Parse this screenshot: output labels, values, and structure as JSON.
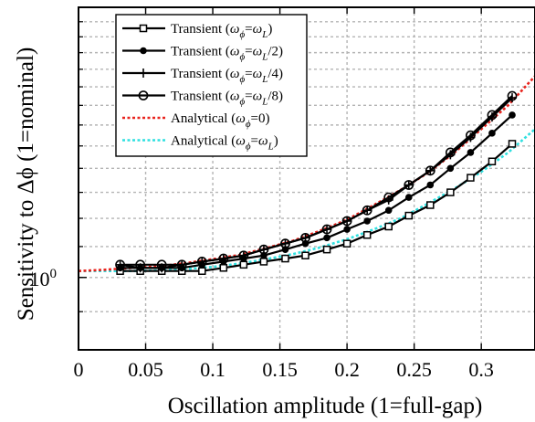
{
  "chart_data": {
    "type": "line",
    "xlabel": "Oscillation amplitude (1=full-gap)",
    "ylabel": "Sensitivity to Δϕ (1=nominal)",
    "xlim": [
      0,
      0.34
    ],
    "ylim": [
      0.8,
      2.3
    ],
    "yscale": "log",
    "grid": true,
    "legend_position": "top-left",
    "x_ticks": [
      {
        "value": 0,
        "label": "0"
      },
      {
        "value": 0.05,
        "label": "0.05"
      },
      {
        "value": 0.1,
        "label": "0.1"
      },
      {
        "value": 0.15,
        "label": "0.15"
      },
      {
        "value": 0.2,
        "label": "0.2"
      },
      {
        "value": 0.25,
        "label": "0.25"
      },
      {
        "value": 0.3,
        "label": "0.3"
      }
    ],
    "y_ticks": [
      {
        "value": 1,
        "base": "10",
        "exp": "0"
      }
    ],
    "x": [
      0.031,
      0.046,
      0.062,
      0.077,
      0.092,
      0.108,
      0.123,
      0.138,
      0.154,
      0.169,
      0.185,
      0.2,
      0.215,
      0.231,
      0.246,
      0.262,
      0.277,
      0.292,
      0.308,
      0.323
    ],
    "series": [
      {
        "name": "Transient (ωϕ=ωL)",
        "legend": {
          "pre": "Transient (",
          "w1": "ω",
          "s1": "ϕ",
          "mid": "=",
          "w2": "ω",
          "s2": "L",
          "post": ")"
        },
        "color": "#000000",
        "line": "solid",
        "marker": "square",
        "values": [
          1.02,
          1.02,
          1.02,
          1.02,
          1.02,
          1.03,
          1.04,
          1.05,
          1.06,
          1.07,
          1.09,
          1.11,
          1.14,
          1.17,
          1.21,
          1.25,
          1.3,
          1.36,
          1.43,
          1.51
        ]
      },
      {
        "name": "Transient (ωϕ=ωL/2)",
        "legend": {
          "pre": "Transient (",
          "w1": "ω",
          "s1": "ϕ",
          "mid": "=",
          "w2": "ω",
          "s2": "L",
          "post": "/2)"
        },
        "color": "#000000",
        "line": "solid",
        "marker": "dot",
        "values": [
          1.03,
          1.03,
          1.03,
          1.03,
          1.04,
          1.05,
          1.06,
          1.07,
          1.09,
          1.11,
          1.13,
          1.16,
          1.19,
          1.23,
          1.28,
          1.33,
          1.4,
          1.47,
          1.56,
          1.65
        ]
      },
      {
        "name": "Transient (ωϕ=ωL/4)",
        "legend": {
          "pre": "Transient (",
          "w1": "ω",
          "s1": "ϕ",
          "mid": "=",
          "w2": "ω",
          "s2": "L",
          "post": "/4)"
        },
        "color": "#000000",
        "line": "solid",
        "marker": "plus",
        "values": [
          1.04,
          1.03,
          1.03,
          1.04,
          1.05,
          1.06,
          1.07,
          1.09,
          1.11,
          1.13,
          1.16,
          1.19,
          1.23,
          1.27,
          1.33,
          1.39,
          1.46,
          1.54,
          1.64,
          1.74
        ]
      },
      {
        "name": "Transient (ωϕ=ωL/8)",
        "legend": {
          "pre": "Transient (",
          "w1": "ω",
          "s1": "ϕ",
          "mid": "=",
          "w2": "ω",
          "s2": "L",
          "post": "/8)"
        },
        "color": "#000000",
        "line": "solid",
        "marker": "circle",
        "values": [
          1.04,
          1.04,
          1.04,
          1.04,
          1.05,
          1.06,
          1.07,
          1.09,
          1.11,
          1.13,
          1.16,
          1.19,
          1.23,
          1.28,
          1.33,
          1.39,
          1.47,
          1.55,
          1.65,
          1.75
        ]
      },
      {
        "name": "Analytical (ωϕ=0)",
        "legend": {
          "pre": "Analytical (",
          "w1": "ω",
          "s1": "ϕ",
          "mid": "=0",
          "w2": "",
          "s2": "",
          "post": ")"
        },
        "color": "#e8231d",
        "line": "dotted",
        "marker": "none",
        "x": [
          0,
          0.02,
          0.04,
          0.06,
          0.08,
          0.1,
          0.12,
          0.14,
          0.16,
          0.18,
          0.2,
          0.22,
          0.24,
          0.26,
          0.28,
          0.3,
          0.32,
          0.34
        ],
        "values": [
          1.02,
          1.024,
          1.03,
          1.035,
          1.045,
          1.058,
          1.072,
          1.095,
          1.12,
          1.155,
          1.195,
          1.25,
          1.31,
          1.38,
          1.47,
          1.58,
          1.7,
          1.86
        ]
      },
      {
        "name": "Analytical (ωϕ=ωL)",
        "legend": {
          "pre": "Analytical (",
          "w1": "ω",
          "s1": "ϕ",
          "mid": "=",
          "w2": "ω",
          "s2": "L",
          "post": ")"
        },
        "color": "#2fe0e0",
        "line": "dotted",
        "marker": "none",
        "x": [
          0,
          0.02,
          0.04,
          0.06,
          0.08,
          0.1,
          0.12,
          0.14,
          0.16,
          0.18,
          0.2,
          0.22,
          0.24,
          0.26,
          0.28,
          0.3,
          0.32,
          0.34
        ],
        "values": [
          1.02,
          1.02,
          1.02,
          1.022,
          1.026,
          1.033,
          1.044,
          1.058,
          1.075,
          1.097,
          1.125,
          1.16,
          1.2,
          1.255,
          1.315,
          1.385,
          1.47,
          1.58
        ]
      }
    ]
  }
}
